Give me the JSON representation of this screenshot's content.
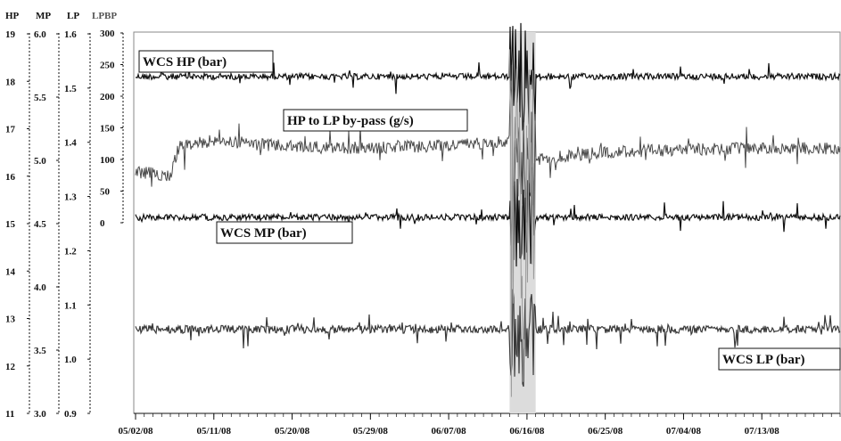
{
  "chart_data": {
    "type": "line",
    "title": "",
    "axes": {
      "hp": {
        "title": "HP",
        "ticks": [
          "11",
          "12",
          "13",
          "14",
          "15",
          "16",
          "17",
          "18",
          "19"
        ],
        "range": [
          11,
          19
        ]
      },
      "mp": {
        "title": "MP",
        "ticks": [
          "3.0",
          "3.5",
          "4.0",
          "4.5",
          "5.0",
          "5.5",
          "6.0"
        ],
        "range": [
          3.0,
          6.0
        ]
      },
      "lp": {
        "title": "LP",
        "ticks": [
          "0.9",
          "1.0",
          "1.1",
          "1.2",
          "1.3",
          "1.4",
          "1.5",
          "1.6"
        ],
        "range": [
          0.9,
          1.6
        ]
      },
      "lpbp": {
        "title": "LPBP",
        "ticks": [
          "0",
          "50",
          "100",
          "150",
          "200",
          "250",
          "300"
        ],
        "range": [
          0,
          300
        ]
      }
    },
    "x_tick_labels": [
      "05/02/08",
      "05/11/08",
      "05/20/08",
      "05/29/08",
      "06/07/08",
      "06/16/08",
      "06/25/08",
      "07/04/08",
      "07/13/08"
    ],
    "x_range": [
      "05/02/08",
      "07/22/08"
    ],
    "shaded_period": [
      "06/14/08",
      "06/17/08"
    ],
    "grid": false,
    "series": [
      {
        "name": "WCS HP (bar)",
        "axis": "hp",
        "approx_level": 18.1,
        "color": "#111111"
      },
      {
        "name": "HP to LP by-pass (g/s)",
        "axis": "lpbp",
        "color": "#4a4a4a",
        "approx_values": [
          {
            "date": "05/02/08",
            "value": 80
          },
          {
            "date": "05/06/08",
            "value": 75
          },
          {
            "date": "05/07/08",
            "value": 120
          },
          {
            "date": "05/11/08",
            "value": 130
          },
          {
            "date": "05/20/08",
            "value": 120
          },
          {
            "date": "05/29/08",
            "value": 118
          },
          {
            "date": "06/07/08",
            "value": 122
          },
          {
            "date": "06/14/08",
            "value": 130
          },
          {
            "date": "06/17/08",
            "value": 100
          },
          {
            "date": "06/25/08",
            "value": 112
          },
          {
            "date": "07/04/08",
            "value": 115
          },
          {
            "date": "07/13/08",
            "value": 118
          },
          {
            "date": "07/22/08",
            "value": 118
          }
        ]
      },
      {
        "name": "WCS MP (bar)",
        "axis": "mp",
        "approx_level": 4.55,
        "color": "#111111"
      },
      {
        "name": "WCS LP (bar)",
        "axis": "lp",
        "approx_level": 1.055,
        "color": "#3a3a3a"
      }
    ],
    "annotations": [
      "WCS HP (bar)",
      "HP to LP by-pass (g/s)",
      "WCS MP (bar)",
      "WCS LP (bar)"
    ]
  }
}
